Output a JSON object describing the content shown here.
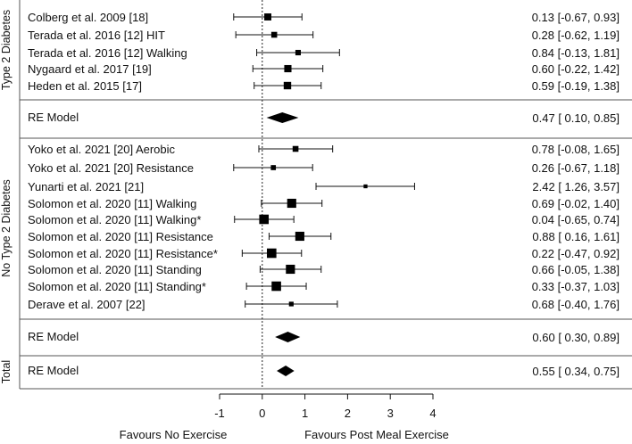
{
  "chart_data": {
    "type": "forest",
    "x_axis": {
      "range": [
        -1,
        4
      ],
      "ticks": [
        -1,
        0,
        1,
        2,
        3,
        4
      ],
      "reference_line": 0,
      "left_label": "Favours No Exercise",
      "right_label": "Favours Post Meal Exercise"
    },
    "groups": [
      {
        "name": "Type 2 Diabetes",
        "studies": [
          {
            "label": "Colberg et al. 2009 [18]",
            "est": 0.13,
            "lo": -0.67,
            "hi": 0.93,
            "ci_text": "0.13 [-0.67, 0.93]",
            "weight": 0.6
          },
          {
            "label": "Terada et al. 2016 [12] HIT",
            "est": 0.28,
            "lo": -0.62,
            "hi": 1.19,
            "ci_text": "0.28 [-0.62, 1.19]",
            "weight": 0.45
          },
          {
            "label": "Terada et al. 2016 [12] Walking",
            "est": 0.84,
            "lo": -0.13,
            "hi": 1.81,
            "ci_text": "0.84 [-0.13, 1.81]",
            "weight": 0.4
          },
          {
            "label": "Nygaard et al. 2017 [19]",
            "est": 0.6,
            "lo": -0.22,
            "hi": 1.42,
            "ci_text": "0.60 [-0.22, 1.42]",
            "weight": 0.62
          },
          {
            "label": "Heden et al. 2015 [17]",
            "est": 0.59,
            "lo": -0.19,
            "hi": 1.38,
            "ci_text": "0.59 [-0.19, 1.38]",
            "weight": 0.65
          }
        ],
        "summary": {
          "label": "RE Model",
          "est": 0.47,
          "lo": 0.1,
          "hi": 0.85,
          "ci_text": "0.47 [ 0.10, 0.85]"
        }
      },
      {
        "name": "No Type 2 Diabetes",
        "studies": [
          {
            "label": "Yoko et al. 2021 [20] Aerobic",
            "est": 0.78,
            "lo": -0.08,
            "hi": 1.65,
            "ci_text": "0.78 [-0.08, 1.65]",
            "weight": 0.45
          },
          {
            "label": "Yoko et al. 2021 [20] Resistance",
            "est": 0.26,
            "lo": -0.67,
            "hi": 1.18,
            "ci_text": "0.26 [-0.67, 1.18]",
            "weight": 0.35
          },
          {
            "label": "Yunarti et al. 2021 [21]",
            "est": 2.42,
            "lo": 1.26,
            "hi": 3.57,
            "ci_text": "2.42 [ 1.26, 3.57]",
            "weight": 0.2
          },
          {
            "label": "Solomon et al. 2020 [11] Walking",
            "est": 0.69,
            "lo": -0.02,
            "hi": 1.4,
            "ci_text": "0.69 [-0.02, 1.40]",
            "weight": 0.85
          },
          {
            "label": "Solomon et al. 2020 [11] Walking*",
            "est": 0.04,
            "lo": -0.65,
            "hi": 0.74,
            "ci_text": "0.04 [-0.65, 0.74]",
            "weight": 0.9
          },
          {
            "label": "Solomon et al. 2020 [11] Resistance",
            "est": 0.88,
            "lo": 0.16,
            "hi": 1.61,
            "ci_text": "0.88 [ 0.16, 1.61]",
            "weight": 0.85
          },
          {
            "label": "Solomon et al. 2020 [11] Resistance*",
            "est": 0.22,
            "lo": -0.47,
            "hi": 0.92,
            "ci_text": "0.22 [-0.47, 0.92]",
            "weight": 0.9
          },
          {
            "label": "Solomon et al. 2020 [11] Standing",
            "est": 0.66,
            "lo": -0.05,
            "hi": 1.38,
            "ci_text": "0.66 [-0.05, 1.38]",
            "weight": 0.85
          },
          {
            "label": "Solomon et al. 2020 [11] Standing*",
            "est": 0.33,
            "lo": -0.37,
            "hi": 1.03,
            "ci_text": "0.33 [-0.37, 1.03]",
            "weight": 0.9
          },
          {
            "label": "Derave et al. 2007 [22]",
            "est": 0.68,
            "lo": -0.4,
            "hi": 1.76,
            "ci_text": "0.68 [-0.40, 1.76]",
            "weight": 0.3
          }
        ],
        "summary": {
          "label": "RE Model",
          "est": 0.6,
          "lo": 0.3,
          "hi": 0.89,
          "ci_text": "0.60 [ 0.30, 0.89]"
        }
      },
      {
        "name": "Total",
        "studies": [],
        "summary": {
          "label": "RE Model",
          "est": 0.55,
          "lo": 0.34,
          "hi": 0.75,
          "ci_text": "0.55 [ 0.34, 0.75]"
        }
      }
    ]
  }
}
